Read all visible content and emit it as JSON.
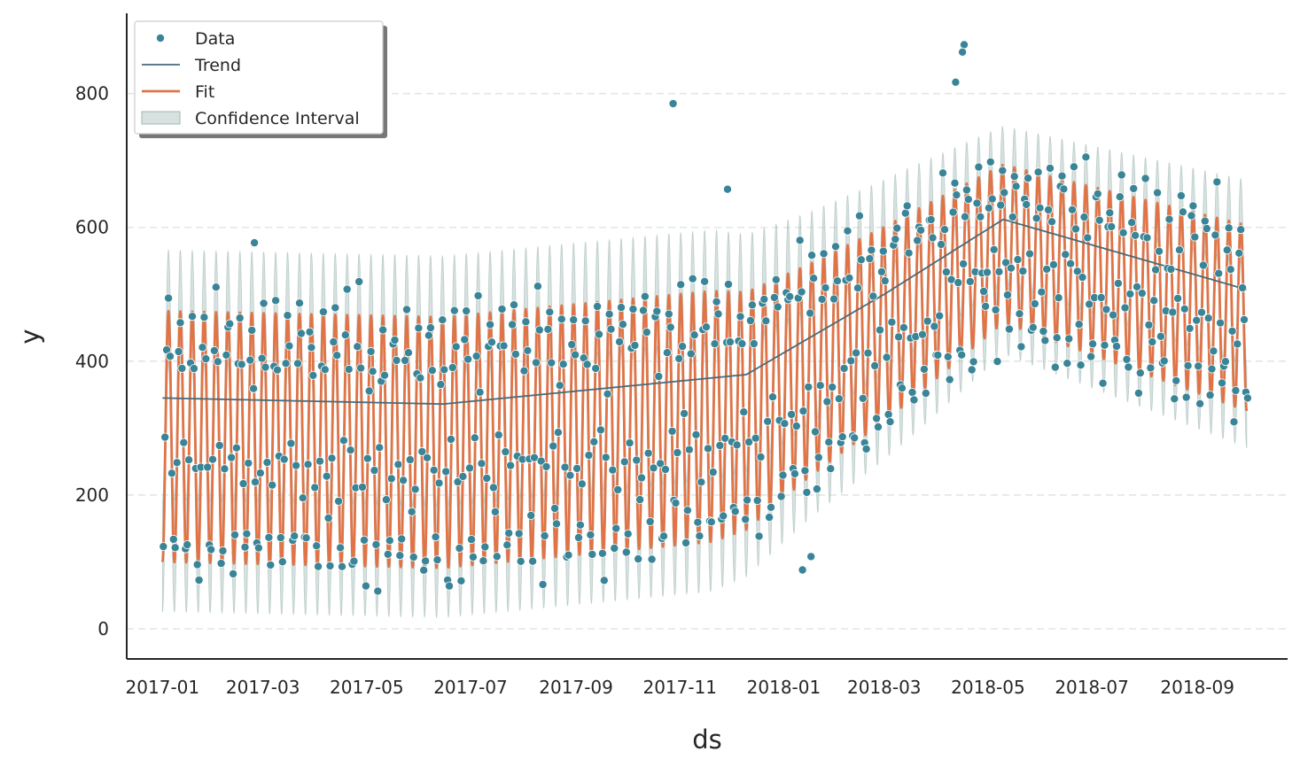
{
  "chart_data": {
    "type": "line",
    "xlabel": "ds",
    "ylabel": "y",
    "ylim": [
      -45,
      920
    ],
    "xlim": [
      "2016-12-11",
      "2018-10-24"
    ],
    "y_ticks": [
      0,
      200,
      400,
      600,
      800
    ],
    "x_ticks": [
      "2017-01",
      "2017-03",
      "2017-05",
      "2017-07",
      "2017-09",
      "2017-11",
      "2018-01",
      "2018-03",
      "2018-05",
      "2018-07",
      "2018-09"
    ],
    "grid": "horizontal-dashed",
    "legend_position": "top-left",
    "date_range": [
      "2017-01-01",
      "2018-09-30"
    ],
    "weekly_period_days": 7,
    "series": [
      {
        "name": "Data",
        "kind": "scatter",
        "color": "#3a8497"
      },
      {
        "name": "Trend",
        "kind": "line",
        "color": "#4a6a79",
        "values": [
          {
            "date": "2017-01-01",
            "y": 345
          },
          {
            "date": "2017-06-15",
            "y": 336
          },
          {
            "date": "2017-12-10",
            "y": 380
          },
          {
            "date": "2018-03-01",
            "y": 500
          },
          {
            "date": "2018-05-10",
            "y": 612
          },
          {
            "date": "2018-09-30",
            "y": 507
          }
        ]
      },
      {
        "name": "Fit",
        "kind": "line",
        "color": "#e07447",
        "weekly_min_offset": -245,
        "weekly_max_offset": 130
      },
      {
        "name": "Confidence Interval",
        "kind": "band",
        "color": "#9fb8b3",
        "lower_offset": -320,
        "upper_offset": 222
      }
    ],
    "amplitude_scale": [
      {
        "date": "2017-01-01",
        "scale": 1.0
      },
      {
        "date": "2017-11-20",
        "scale": 1.0
      },
      {
        "date": "2018-01-15",
        "scale": 0.85
      },
      {
        "date": "2018-03-15",
        "scale": 0.75
      },
      {
        "date": "2018-05-10",
        "scale": 0.63
      },
      {
        "date": "2018-09-30",
        "scale": 0.74
      }
    ],
    "outliers": [
      {
        "date": "2017-10-28",
        "y": 785
      },
      {
        "date": "2017-02-24",
        "y": 577
      },
      {
        "date": "2017-11-29",
        "y": 657
      },
      {
        "date": "2018-04-17",
        "y": 873
      },
      {
        "date": "2018-04-16",
        "y": 862
      },
      {
        "date": "2018-04-12",
        "y": 817
      },
      {
        "date": "2018-01-12",
        "y": 88
      },
      {
        "date": "2018-01-17",
        "y": 108
      }
    ]
  },
  "legend": {
    "items": [
      {
        "label": "Data"
      },
      {
        "label": "Trend"
      },
      {
        "label": "Fit"
      },
      {
        "label": "Confidence Interval"
      }
    ]
  },
  "colors": {
    "data": "#3a8497",
    "trend": "#4a6a79",
    "fit": "#e07447",
    "band": "#9fb8b3",
    "axis": "#262626",
    "grid": "#e3e6e6"
  }
}
